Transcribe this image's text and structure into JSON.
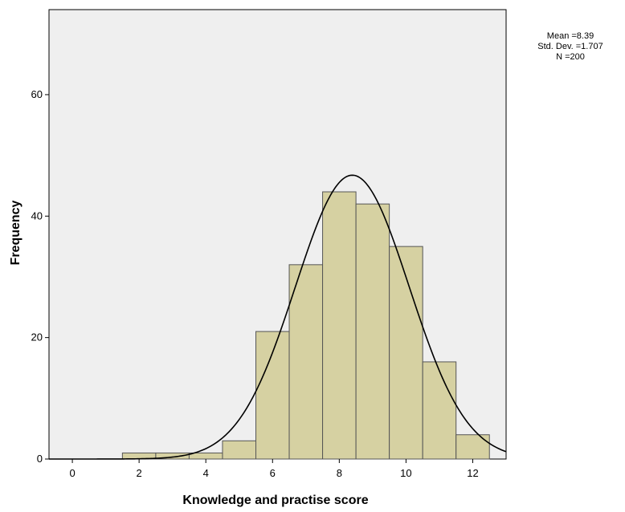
{
  "chart_data": {
    "type": "bar",
    "subtype": "histogram",
    "xlabel": "Knowledge and practise score",
    "ylabel": "Frequency",
    "x_ticks": [
      "0",
      "2",
      "4",
      "6",
      "8",
      "10",
      "12"
    ],
    "y_ticks": [
      "0",
      "20",
      "40",
      "60"
    ],
    "xlim": [
      -0.7,
      13.0
    ],
    "ylim": [
      0,
      74
    ],
    "bin_width": 1,
    "bins": [
      {
        "center": 2,
        "value": 1
      },
      {
        "center": 3,
        "value": 1
      },
      {
        "center": 4,
        "value": 1
      },
      {
        "center": 5,
        "value": 3
      },
      {
        "center": 6,
        "value": 21
      },
      {
        "center": 7,
        "value": 32
      },
      {
        "center": 8,
        "value": 44
      },
      {
        "center": 9,
        "value": 42
      },
      {
        "center": 10,
        "value": 35
      },
      {
        "center": 11,
        "value": 16
      },
      {
        "center": 12,
        "value": 4
      }
    ],
    "normal_curve": {
      "mean": 8.39,
      "sd": 1.707,
      "n": 200
    },
    "stats_text": [
      "Mean =8.39",
      "Std. Dev. =1.707",
      "N =200"
    ],
    "colors": {
      "plot_background": "#efefef",
      "bar_fill": "#d6d1a2",
      "bar_stroke": "#555555",
      "curve": "#000000"
    },
    "grid": false
  }
}
